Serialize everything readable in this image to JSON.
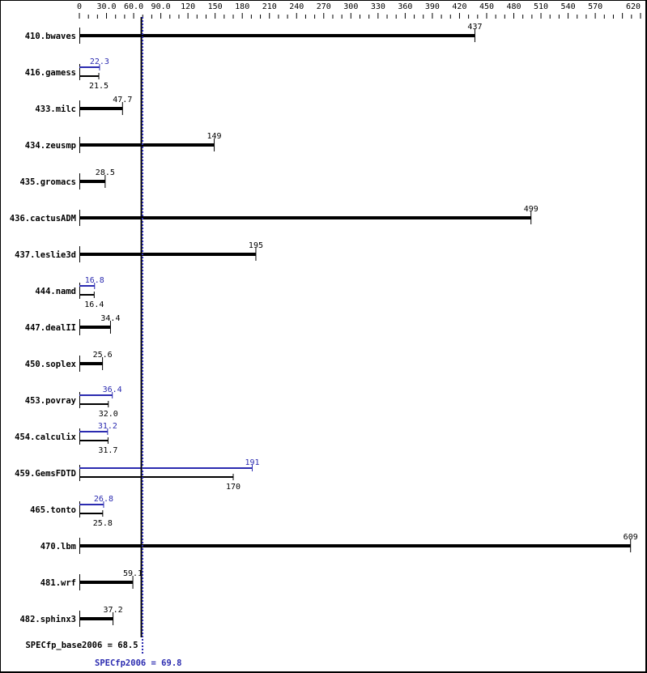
{
  "chart_data": {
    "type": "bar",
    "orientation": "horizontal",
    "xlim": [
      0,
      620
    ],
    "x_tick_labels": [
      "0",
      "30.0",
      "60.0",
      "90.0",
      "120",
      "150",
      "180",
      "210",
      "240",
      "270",
      "300",
      "330",
      "360",
      "390",
      "420",
      "450",
      "480",
      "510",
      "540",
      "570",
      "620"
    ],
    "x_tick_values": [
      0,
      30,
      60,
      90,
      120,
      150,
      180,
      210,
      240,
      270,
      300,
      330,
      360,
      390,
      420,
      450,
      480,
      510,
      540,
      570,
      620
    ],
    "categories": [
      "410.bwaves",
      "416.gamess",
      "433.milc",
      "434.zeusmp",
      "435.gromacs",
      "436.cactusADM",
      "437.leslie3d",
      "444.namd",
      "447.dealII",
      "450.soplex",
      "453.povray",
      "454.calculix",
      "459.GemsFDTD",
      "465.tonto",
      "470.lbm",
      "481.wrf",
      "482.sphinx3"
    ],
    "series": [
      {
        "key": "base",
        "values": [
          437,
          21.5,
          47.7,
          149,
          28.5,
          499,
          195,
          16.4,
          34.4,
          25.6,
          32.0,
          31.7,
          170,
          25.8,
          609,
          59.1,
          37.2
        ],
        "labels": [
          "437",
          "21.5",
          "47.7",
          "149",
          "28.5",
          "499",
          "195",
          "16.4",
          "34.4",
          "25.6",
          "32.0",
          "31.7",
          "170",
          "25.8",
          "609",
          "59.1",
          "37.2"
        ]
      },
      {
        "key": "peak",
        "values": [
          null,
          22.3,
          null,
          null,
          null,
          null,
          null,
          16.8,
          null,
          null,
          36.4,
          31.2,
          191,
          26.8,
          null,
          null,
          null
        ],
        "labels": [
          null,
          "22.3",
          null,
          null,
          null,
          null,
          null,
          "16.8",
          null,
          null,
          "36.4",
          "31.2",
          "191",
          "26.8",
          null,
          null,
          null
        ]
      }
    ],
    "reference_lines": [
      {
        "key": "base",
        "value": 68.5,
        "label": "SPECfp_base2006 = 68.5",
        "style": "solid"
      },
      {
        "key": "peak",
        "value": 69.8,
        "label": "SPECfp2006 = 69.8",
        "style": "dotted"
      }
    ],
    "colors": {
      "base": "#000000",
      "peak": "#2b2bb0"
    },
    "grid": false
  }
}
